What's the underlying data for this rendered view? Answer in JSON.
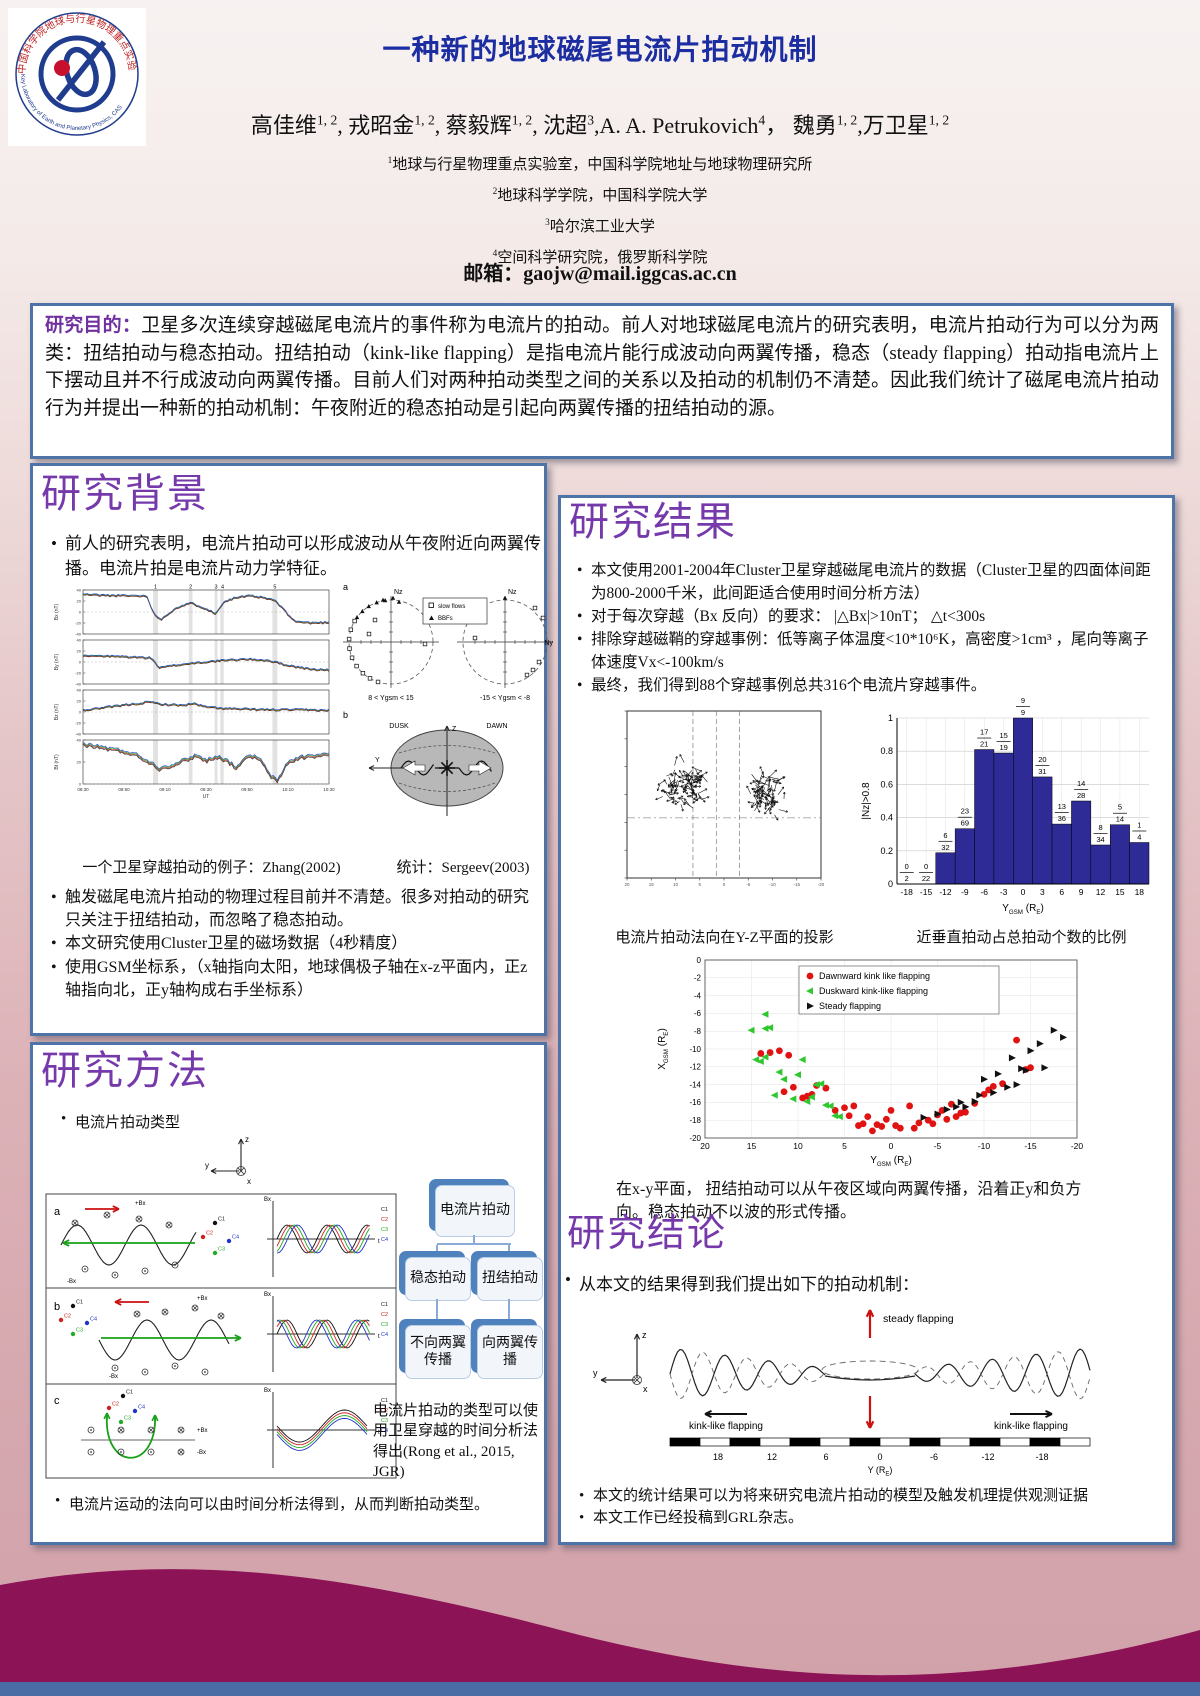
{
  "page": {
    "wave_color": "#8d1357",
    "bottom_bar_color": "#4a6da6",
    "box_border": "#4e73a6",
    "heading_color": "#7639ab",
    "title_color": "#1b2da0",
    "bar_color": "#2e2b96"
  },
  "header": {
    "title": "一种新的地球磁尾电流片拍动机制",
    "authors": [
      {
        "n": "高佳维",
        "s": "1, 2",
        "sep": ", "
      },
      {
        "n": "戎昭金",
        "s": "1, 2",
        "sep": ", "
      },
      {
        "n": "蔡毅辉",
        "s": "1, 2",
        "sep": ", "
      },
      {
        "n": "沈超",
        "s": "3",
        "sep": ","
      },
      {
        "n": "A. A. Petrukovich",
        "s": "4",
        "sep": "， "
      },
      {
        "n": "魏勇",
        "s": "1, 2",
        "sep": ","
      },
      {
        "n": "万卫星",
        "s": "1, 2",
        "sep": ""
      }
    ],
    "affiliations": [
      {
        "sup": "1",
        "text": "地球与行星物理重点实验室，中国科学院地址与地球物理研究所"
      },
      {
        "sup": "2",
        "text": "地球科学学院，中国科学院大学"
      },
      {
        "sup": "3",
        "text": "哈尔滨工业大学"
      },
      {
        "sup": "4",
        "text": "空间科学研究院，俄罗斯科学院"
      }
    ],
    "email_label": "邮箱：",
    "email": "gaojw@mail.iggcas.ac.cn",
    "logo_text_cn": "中国科学院地球与行星物理重点实验室",
    "logo_text_en": "Key Laboratory of Earth and Planetary Physics, CAS"
  },
  "abstract": {
    "label": "研究目的：",
    "text": "卫星多次连续穿越磁尾电流片的事件称为电流片的拍动。前人对地球磁尾电流片的研究表明，电流片拍动行为可以分为两类：扭结拍动与稳态拍动。扭结拍动（kink-like flapping）是指电流片能行成波动向两翼传播，稳态（steady flapping）拍动指电流片上下摆动且并不行成波动向两翼传播。目前人们对两种拍动类型之间的关系以及拍动的机制仍不清楚。因此我们统计了磁尾电流片拍动行为并提出一种新的拍动机制：午夜附近的稳态拍动是引起向两翼传播的扭结拍动的源。"
  },
  "background": {
    "heading": "研究背景",
    "bullet1": "前人的研究表明，电流片拍动可以形成波动从午夜附近向两翼传播。电流片拍是电流片动力学特征。",
    "caption_left": "一个卫星穿越拍动的例子：Zhang(2002)",
    "caption_right": "统计：Sergeev(2003)",
    "bullet2": "触发磁尾电流片拍动的物理过程目前并不清楚。很多对拍动的研究只关注于扭结拍动，而忽略了稳态拍动。",
    "bullet3": "本文研究使用Cluster卫星的磁场数据（4秒精度）",
    "bullet4": "使用GSM坐标系，（x轴指向太阳，地球偶极子轴在x-z平面内，正z轴指向北，正y轴构成右手坐标系）",
    "fig": {
      "panel_a": "a",
      "panel_b": "b",
      "nz": "Nz",
      "ny": "Ny",
      "legend": [
        "slow flows",
        "BBFs"
      ],
      "cap_left_circle": "8 < Ygsm < 15",
      "cap_right_circle": "-15 < Ygsm < -8",
      "dusk": "DUSK",
      "dawn": "DAWN",
      "y": "Y",
      "z": "Z",
      "panels": [
        "Bx (nT)",
        "By (nT)",
        "Bz (nT)",
        "Bt (nT)"
      ],
      "yticks": [
        "40",
        "20",
        "0",
        "-20",
        "-40"
      ],
      "xticks": [
        "08:30",
        "08:50",
        "09:10",
        "09:30",
        "09:50",
        "10:10",
        "10:30"
      ],
      "xlabel": "UT",
      "events": [
        "1",
        "2",
        "3",
        "4",
        "5"
      ]
    }
  },
  "methods": {
    "heading": "研究方法",
    "bullet": "电流片拍动类型",
    "flow": {
      "root": "电流片拍动",
      "left1": "稳态拍动",
      "right1": "扭结拍动",
      "left2": "不向两翼传播",
      "right2": "向两翼传播"
    },
    "note": "电流片拍动的类型可以使用卫星穿越的时间分析法得出(Rong et al., 2015, JGR)",
    "bullet_bottom": "电流片运动的法向可以由时间分析法得到，从而判断拍动类型。",
    "fig": {
      "rows": [
        "a",
        "b",
        "c"
      ],
      "sats": [
        "C1",
        "C2",
        "C3",
        "C4"
      ],
      "sat_colors": [
        "#111111",
        "#cc2222",
        "#22aa22",
        "#2233cc"
      ],
      "plus_bx": "+Bx",
      "minus_bx": "-Bx",
      "bx": "Bx",
      "t": "t",
      "axes": [
        "z",
        "y",
        "x"
      ]
    }
  },
  "results": {
    "heading": "研究结果",
    "bullets": [
      "本文使用2001-2004年Cluster卫星穿越磁尾电流片的数据（Cluster卫星的四面体间距为800-2000千米，此间距适合使用时间分析方法）",
      "对于每次穿越（Bx 反向）的要求：  |△Bx|>10nT；  △t<300s",
      "排除穿越磁鞘的穿越事例：低等离子体温度<10*10⁶K，高密度>1cm³ ，尾向等离子体速度Vx<-100km/s",
      "最终，我们得到88个穿越事例总共316个电流片穿越事件。"
    ],
    "caption_left": "电流片拍动法向在Y-Z平面的投影",
    "caption_right": "近垂直拍动占总拍动个数的比例",
    "xy_caption": "在x-y平面， 扭结拍动可以从午夜区域向两翼传播，沿着正y和负方向。稳态拍动不以波的形式传播。"
  },
  "conclusions": {
    "heading": "研究结论",
    "intro": "从本文的结果得到我们提出如下的拍动机制：",
    "fig": {
      "steady": "steady flapping",
      "kink_left": "kink-like flapping",
      "kink_right": "kink-like flapping",
      "ruler_ticks": [
        "18",
        "12",
        "6",
        "0",
        "-6",
        "-12",
        "-18"
      ],
      "xlabel_main": "Y (R",
      "xlabel_sub": "E",
      "xlabel_end": ")",
      "axes": [
        "z",
        "y",
        "x"
      ]
    },
    "bullets": [
      "本文的统计结果可以为将来研究电流片拍动的模型及触发机理提供观测证据",
      "本文工作已经投稿到GRL杂志。"
    ]
  },
  "chart_data": [
    {
      "type": "bar",
      "title": "近垂直拍动占总拍动个数的比例",
      "xlabel": "Y_GSM (R_E)",
      "ylabel": "|Nz|>0.8",
      "categories": [
        "-18",
        "-15",
        "-12",
        "-9",
        "-6",
        "-3",
        "0",
        "3",
        "6",
        "9",
        "12",
        "15",
        "18"
      ],
      "fractions": [
        "0/2",
        "0/22",
        "6/32",
        "23/69",
        "17/21",
        "15/19",
        "9/9",
        "20/31",
        "13/36",
        "14/28",
        "8/34",
        "5/14",
        "1/4"
      ],
      "values": [
        0,
        0,
        0.188,
        0.333,
        0.81,
        0.789,
        1.0,
        0.645,
        0.361,
        0.5,
        0.235,
        0.357,
        0.25
      ],
      "ylim": [
        0,
        1
      ],
      "yticks": [
        "0",
        "0.2",
        "0.4",
        "0.6",
        "0.8",
        "1"
      ],
      "grid": true,
      "bar_color": "#2e2b96"
    },
    {
      "type": "scatter",
      "xlabel": "Y_GSM (R_E)",
      "ylabel": "X_GSM (R_E)",
      "xlim": [
        20,
        -20
      ],
      "ylim": [
        0,
        -20
      ],
      "xticks": [
        20,
        15,
        10,
        5,
        0,
        -5,
        -10,
        -15,
        -20
      ],
      "yticks": [
        0,
        -2,
        -4,
        -6,
        -8,
        -10,
        -12,
        -14,
        -16,
        -18,
        -20
      ],
      "grid": true,
      "legend_position": "top-center",
      "series": [
        {
          "name": "Dawnward kink like flapping",
          "marker": "circle",
          "color": "#e01212",
          "points": [
            [
              14,
              -10.5
            ],
            [
              13,
              -10.4
            ],
            [
              12,
              -10.2
            ],
            [
              11.5,
              -14.8
            ],
            [
              11,
              -10.7
            ],
            [
              10.5,
              -14.3
            ],
            [
              9.5,
              -15.5
            ],
            [
              9,
              -15.3
            ],
            [
              8.5,
              -15.1
            ],
            [
              8,
              -14.1
            ],
            [
              7,
              -14.4
            ],
            [
              6,
              -16.9
            ],
            [
              5,
              -16.6
            ],
            [
              4.5,
              -17.5
            ],
            [
              4,
              -16.4
            ],
            [
              3.5,
              -18.6
            ],
            [
              3,
              -18.4
            ],
            [
              2.5,
              -17.6
            ],
            [
              2,
              -19.2
            ],
            [
              1.5,
              -18.5
            ],
            [
              1,
              -18.7
            ],
            [
              0.5,
              -17.9
            ],
            [
              0,
              -16.9
            ],
            [
              -0.5,
              -18.6
            ],
            [
              -1,
              -18.9
            ],
            [
              -2,
              -16.4
            ],
            [
              -2.5,
              -18.9
            ],
            [
              -3,
              -18.3
            ],
            [
              -4,
              -18.0
            ],
            [
              -4.5,
              -18.4
            ],
            [
              -5,
              -17.4
            ],
            [
              -5.5,
              -16.9
            ],
            [
              -6,
              -17.9
            ],
            [
              -6.5,
              -16.2
            ],
            [
              -7,
              -17.6
            ],
            [
              -7.5,
              -17.2
            ],
            [
              -8,
              -17.1
            ],
            [
              -9,
              -16.1
            ],
            [
              -10,
              -15.1
            ],
            [
              -10.5,
              -14.6
            ],
            [
              -11,
              -14.2
            ],
            [
              -12,
              -13.9
            ],
            [
              -13.5,
              -9.0
            ],
            [
              -14.5,
              -12.3
            ],
            [
              -15,
              -12.1
            ]
          ]
        },
        {
          "name": "Duskward kink-like flapping",
          "marker": "triangle-left",
          "color": "#2ec82e",
          "points": [
            [
              15,
              -7.9
            ],
            [
              14.5,
              -11.2
            ],
            [
              14,
              -11.4
            ],
            [
              13.5,
              -6.1
            ],
            [
              13.5,
              -7.7
            ],
            [
              13.5,
              -10.9
            ],
            [
              13,
              -7.6
            ],
            [
              12.5,
              -15.2
            ],
            [
              12,
              -12.6
            ],
            [
              11.5,
              -13.4
            ],
            [
              10.5,
              -15.6
            ],
            [
              10,
              -12.9
            ],
            [
              9.5,
              -11.2
            ],
            [
              9,
              -15.9
            ],
            [
              8.5,
              -15.4
            ],
            [
              8,
              -14.0
            ],
            [
              7.5,
              -13.9
            ],
            [
              7,
              -16.3
            ],
            [
              6.5,
              -16.4
            ],
            [
              6,
              -17.5
            ],
            [
              5.5,
              -17.6
            ]
          ]
        },
        {
          "name": "Steady flapping",
          "marker": "triangle-right",
          "color": "#111111",
          "points": [
            [
              -3.5,
              -17.7
            ],
            [
              -5,
              -17.3
            ],
            [
              -6,
              -16.8
            ],
            [
              -7,
              -16.5
            ],
            [
              -7.5,
              -16.0
            ],
            [
              -8,
              -16.5
            ],
            [
              -9,
              -15.9
            ],
            [
              -9.5,
              -15.2
            ],
            [
              -10,
              -13.4
            ],
            [
              -11,
              -14.9
            ],
            [
              -11.5,
              -12.8
            ],
            [
              -12.5,
              -14.3
            ],
            [
              -13,
              -11.0
            ],
            [
              -13.5,
              -14.0
            ],
            [
              -14,
              -12.2
            ],
            [
              -14.5,
              -12.4
            ],
            [
              -15,
              -10.2
            ],
            [
              -16,
              -9.4
            ],
            [
              -16.5,
              -12.1
            ],
            [
              -17.5,
              -7.9
            ],
            [
              -18.5,
              -8.7
            ]
          ]
        }
      ]
    },
    {
      "type": "line",
      "title": "一个卫星穿越拍动的例子：Zhang(2002)",
      "panels": [
        "Bx (nT)",
        "By (nT)",
        "Bz (nT)",
        "Bt (nT)"
      ],
      "x_ticks": [
        "08:30",
        "08:50",
        "09:10",
        "09:30",
        "09:50",
        "10:10",
        "10:30"
      ],
      "xlabel": "UT",
      "ylim": [
        -40,
        40
      ],
      "event_marks": [
        "1",
        "2",
        "3",
        "4",
        "5"
      ]
    }
  ]
}
